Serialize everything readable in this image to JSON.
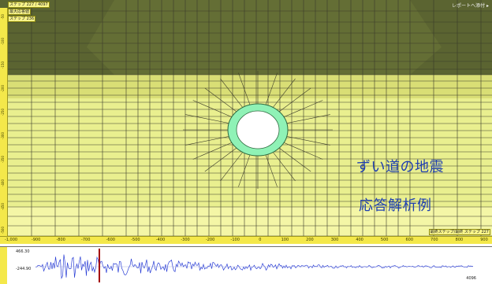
{
  "viewer": {
    "step_tag": "ステップ 227 / 4097",
    "display_tag": "最大応答値",
    "step_small": "ステップ 236",
    "report_link": "レポートへ添付 ▸",
    "step_right_tag": "最終ステップ/最終 ステップ 227"
  },
  "overlay": {
    "line1": "ずい道の地震",
    "line2": "応答解析例"
  },
  "rulers": {
    "left_ticks": [
      "-50",
      "-100",
      "-150",
      "-200",
      "-250",
      "-300",
      "-350",
      "-400",
      "-450",
      "-500"
    ],
    "bottom_ticks": [
      "-1,000",
      "-900",
      "-800",
      "-700",
      "-600",
      "-500",
      "-400",
      "-300",
      "-200",
      "-100",
      "0",
      "100",
      "200",
      "300",
      "400",
      "500",
      "600",
      "700",
      "800",
      "900"
    ]
  },
  "waveform": {
    "max_label": "466.30",
    "min_label": "-244.90",
    "end_label": "4096",
    "cursor_fraction": 0.2,
    "color": "#2b3fd6",
    "cursor_color": "#a40000"
  },
  "colors": {
    "dark_band": "#5b6431",
    "mid_band": "#d9de75",
    "light_band": "#e9ef8f",
    "lower_band": "#f4f6a6",
    "tunnel_ring": "#8ff2b6",
    "mesh_line": "#3a3a2a"
  }
}
